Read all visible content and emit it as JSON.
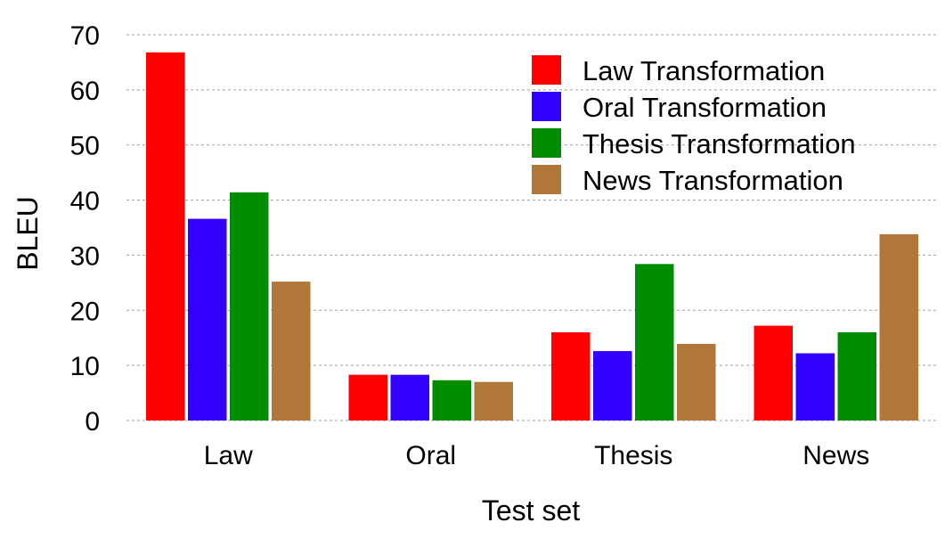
{
  "chart_data": {
    "type": "bar",
    "title": "",
    "xlabel": "Test set",
    "ylabel": "BLEU",
    "ylim": [
      0,
      70
    ],
    "yticks": [
      0,
      10,
      20,
      30,
      40,
      50,
      60,
      70
    ],
    "grid": true,
    "legend_position": "top-right",
    "categories": [
      "Law",
      "Oral",
      "Thesis",
      "News"
    ],
    "series": [
      {
        "name": "Law Transformation",
        "color": "#ff0000",
        "values": [
          66.8,
          8.3,
          16.0,
          17.2
        ]
      },
      {
        "name": "Oral Transformation",
        "color": "#3300ff",
        "values": [
          36.6,
          8.3,
          12.6,
          12.2
        ]
      },
      {
        "name": "Thesis Transformation",
        "color": "#008c00",
        "values": [
          41.4,
          7.3,
          28.4,
          16.0
        ]
      },
      {
        "name": "News Transformation",
        "color": "#b07838",
        "values": [
          25.2,
          7.0,
          13.9,
          33.8
        ]
      }
    ]
  }
}
